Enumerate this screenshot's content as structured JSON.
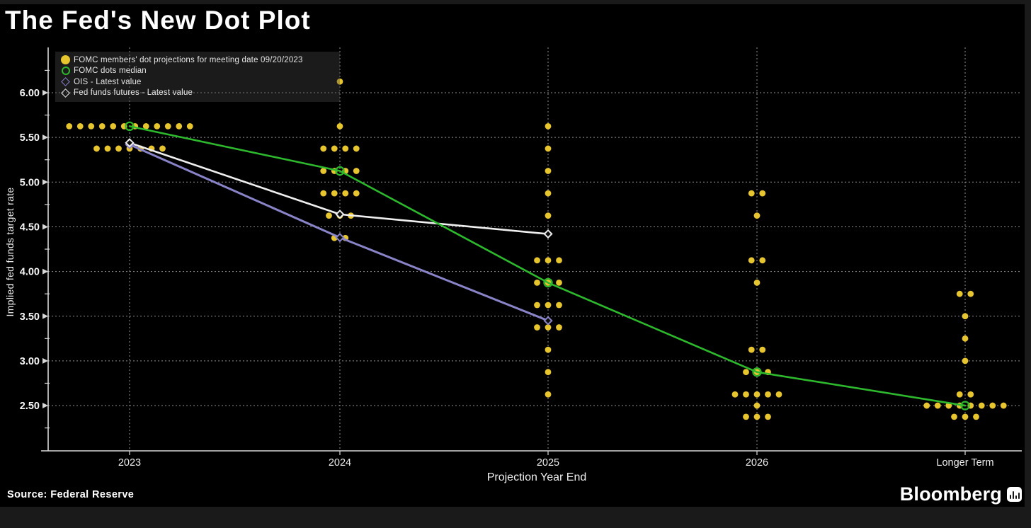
{
  "title": "The Fed's New Dot Plot",
  "source": "Source: Federal Reserve",
  "brand": {
    "name": "Bloomberg"
  },
  "chart_data": {
    "type": "scatter",
    "title": "The Fed's New Dot Plot",
    "xlabel": "Projection Year End",
    "ylabel": "Implied fed funds target rate",
    "categories": [
      "2023",
      "2024",
      "2025",
      "2026",
      "Longer Term"
    ],
    "ylim": [
      2.0,
      6.5
    ],
    "yticks": [
      2.5,
      3.0,
      3.5,
      4.0,
      4.5,
      5.0,
      5.5,
      6.0
    ],
    "grid": true,
    "legend_position": "top-left",
    "colors": {
      "dots": "#e7c52f",
      "median": "#2db82d",
      "ois": "#8983c7",
      "futures": "#efefef",
      "gridline": "#909090",
      "axis": "#d8d8d8",
      "background": "#000000"
    },
    "legend": [
      {
        "label": "FOMC members' dot projections for meeting date 09/20/2023",
        "marker": "dot",
        "color": "#e7c52f"
      },
      {
        "label": "FOMC dots median",
        "marker": "open-circle",
        "color": "#2db82d"
      },
      {
        "label": "OIS - Latest value",
        "marker": "diamond",
        "color": "#8983c7"
      },
      {
        "label": "Fed funds futures - Latest value",
        "marker": "diamond",
        "color": "#efefef"
      }
    ],
    "dot_projections": {
      "2023": {
        "5.625": 12,
        "5.375": 7
      },
      "2024": {
        "6.125": 1,
        "5.625": 1,
        "5.375": 4,
        "5.125": 4,
        "4.875": 4,
        "4.625": 3,
        "4.375": 2
      },
      "2025": {
        "5.625": 1,
        "5.375": 1,
        "5.125": 1,
        "4.875": 1,
        "4.625": 1,
        "4.125": 3,
        "3.875": 3,
        "3.625": 3,
        "3.375": 3,
        "3.125": 1,
        "2.875": 1,
        "2.625": 1
      },
      "2026": {
        "4.875": 2,
        "4.625": 1,
        "4.125": 2,
        "3.875": 1,
        "3.125": 2,
        "2.875": 3,
        "2.625": 5,
        "2.5": 1,
        "2.375": 3
      },
      "Longer Term": {
        "3.75": 2,
        "3.5": 1,
        "3.25": 1,
        "3.0": 1,
        "2.625": 2,
        "2.5": 8,
        "2.375": 3
      }
    },
    "series": [
      {
        "name": "OIS - Latest value",
        "key": "ois",
        "color": "#8983c7",
        "marker": "diamond",
        "x": [
          "2023",
          "2024",
          "2025"
        ],
        "values": [
          5.42,
          4.38,
          3.45
        ]
      },
      {
        "name": "Fed funds futures - Latest value",
        "key": "futures",
        "color": "#efefef",
        "marker": "diamond",
        "x": [
          "2023",
          "2024",
          "2025"
        ],
        "values": [
          5.44,
          4.64,
          4.42
        ]
      },
      {
        "name": "FOMC dots median",
        "key": "median",
        "color": "#2db82d",
        "marker": "open-circle",
        "x": [
          "2023",
          "2024",
          "2025",
          "2026",
          "Longer Term"
        ],
        "values": [
          5.625,
          5.125,
          3.875,
          2.875,
          2.5
        ]
      }
    ]
  }
}
